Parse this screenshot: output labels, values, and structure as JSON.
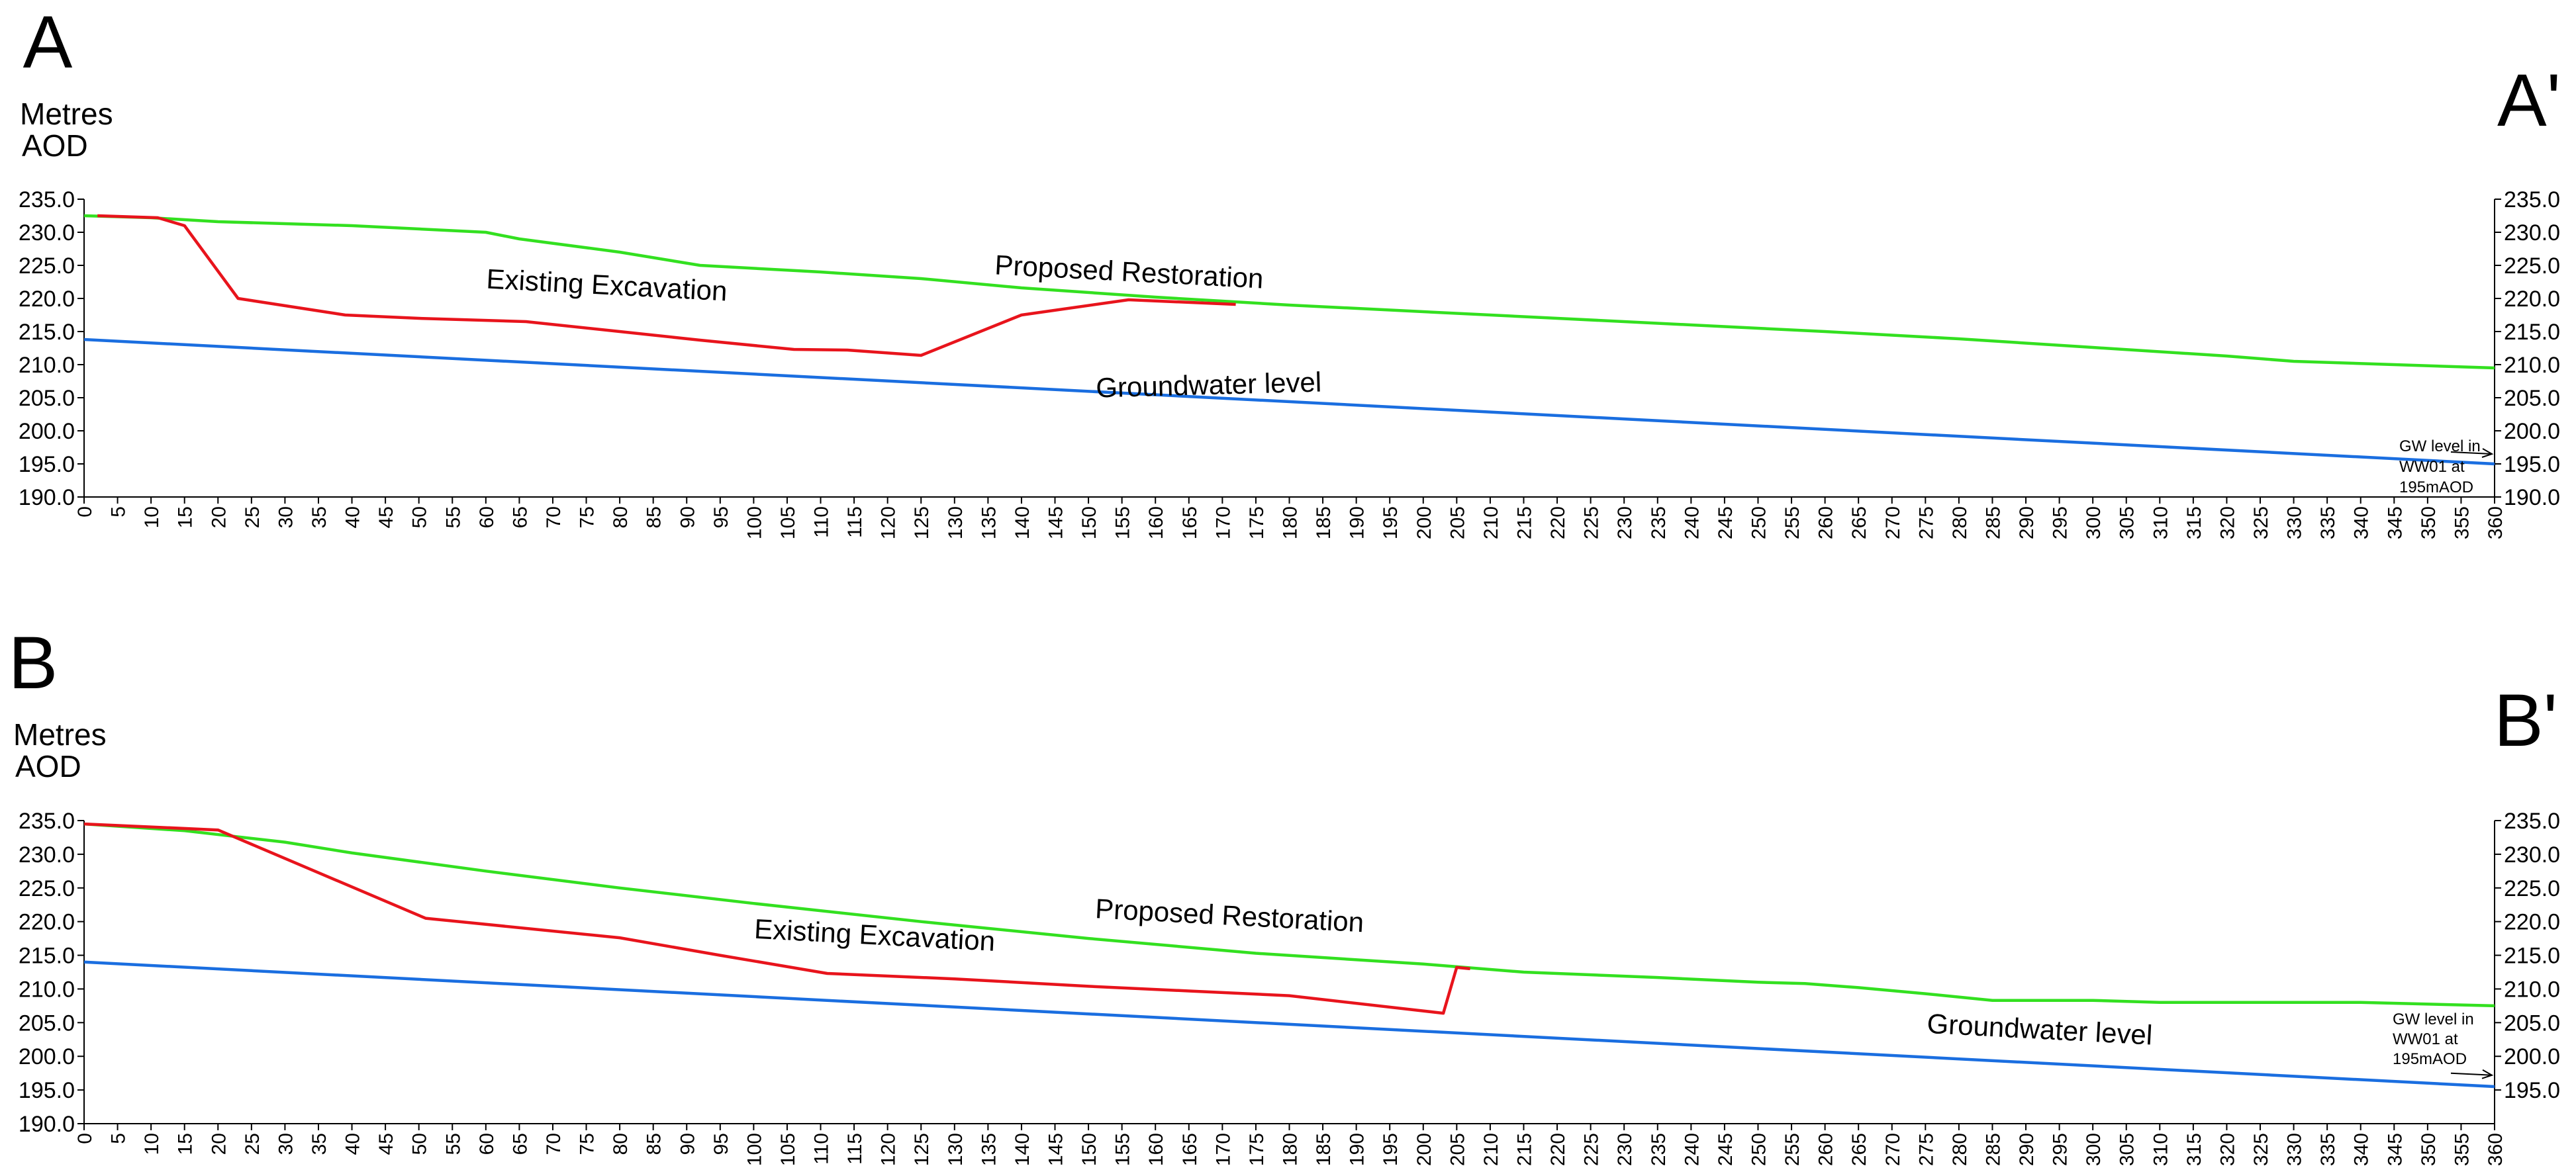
{
  "chart_data": [
    {
      "type": "line",
      "section_start": "A",
      "section_end": "A'",
      "ylabel": "Metres AOD",
      "ylabel_lines": [
        "Metres",
        "AOD"
      ],
      "xlim": [
        0,
        360
      ],
      "ylim": [
        190,
        235
      ],
      "x_tick_step": 5,
      "y_ticks": [
        "235.0",
        "230.0",
        "225.0",
        "220.0",
        "215.0",
        "210.0",
        "205.0",
        "200.0",
        "195.0",
        "190.0"
      ],
      "grid": false,
      "series": [
        {
          "name": "Proposed Restoration",
          "color": "#33e020",
          "points": [
            [
              0,
              232.5
            ],
            [
              10,
              232.2
            ],
            [
              20,
              231.6
            ],
            [
              40,
              231.0
            ],
            [
              60,
              230.0
            ],
            [
              65,
              229.0
            ],
            [
              80,
              227.0
            ],
            [
              92,
              225.0
            ],
            [
              110,
              224.0
            ],
            [
              125,
              223.0
            ],
            [
              140,
              221.6
            ],
            [
              160,
              220.2
            ],
            [
              180,
              219.0
            ],
            [
              200,
              218.0
            ],
            [
              220,
              217.0
            ],
            [
              240,
              216.0
            ],
            [
              260,
              215.0
            ],
            [
              280,
              213.9
            ],
            [
              300,
              212.6
            ],
            [
              320,
              211.3
            ],
            [
              330,
              210.5
            ],
            [
              345,
              210.0
            ],
            [
              360,
              209.5
            ]
          ]
        },
        {
          "name": "Existing Excavation",
          "color": "#e8141c",
          "points": [
            [
              2,
              232.5
            ],
            [
              11,
              232.2
            ],
            [
              15,
              231.0
            ],
            [
              23,
              220.0
            ],
            [
              39,
              217.5
            ],
            [
              50,
              217.0
            ],
            [
              66,
              216.5
            ],
            [
              80,
              215.0
            ],
            [
              92,
              213.7
            ],
            [
              106,
              212.3
            ],
            [
              114,
              212.2
            ],
            [
              125,
              211.4
            ],
            [
              140,
              217.5
            ],
            [
              156,
              219.8
            ],
            [
              172,
              219.1
            ]
          ]
        },
        {
          "name": "Groundwater level",
          "color": "#1a6ee0",
          "points": [
            [
              0,
              213.8
            ],
            [
              360,
              195.0
            ]
          ]
        }
      ],
      "annotations": {
        "line_labels": [
          {
            "text": "Existing Excavation",
            "x": 78,
            "y": 220.6,
            "rotate": 3
          },
          {
            "text": "Proposed Restoration",
            "x": 156,
            "y": 222.6,
            "rotate": 3
          },
          {
            "text": "Groundwater level",
            "x": 168,
            "y": 205.5,
            "rotate": -1.5
          }
        ],
        "note": [
          "GW level in",
          "WW01 at",
          "195mAOD"
        ],
        "note_arrow_to": [
          360,
          196.5
        ]
      }
    },
    {
      "type": "line",
      "section_start": "B",
      "section_end": "B'",
      "ylabel": "Metres AOD",
      "ylabel_lines": [
        "Metres",
        "AOD"
      ],
      "xlim": [
        0,
        360
      ],
      "ylim": [
        190,
        235
      ],
      "x_tick_step": 5,
      "y_ticks": [
        "235.0",
        "230.0",
        "225.0",
        "220.0",
        "215.0",
        "210.0",
        "205.0",
        "200.0",
        "195.0",
        "190.0"
      ],
      "right_y_ticks": [
        "235.0",
        "230.0",
        "225.0",
        "220.0",
        "215.0",
        "210.0",
        "205.0",
        "200.0",
        "195.0"
      ],
      "grid": false,
      "series": [
        {
          "name": "Proposed Restoration",
          "color": "#33e020",
          "points": [
            [
              0,
              234.5
            ],
            [
              15,
              233.5
            ],
            [
              30,
              231.8
            ],
            [
              40,
              230.2
            ],
            [
              60,
              227.5
            ],
            [
              80,
              225.0
            ],
            [
              100,
              222.7
            ],
            [
              125,
              220.0
            ],
            [
              150,
              217.5
            ],
            [
              175,
              215.3
            ],
            [
              200,
              213.7
            ],
            [
              215,
              212.5
            ],
            [
              235,
              211.7
            ],
            [
              250,
              211.0
            ],
            [
              257,
              210.8
            ],
            [
              265,
              210.2
            ],
            [
              275,
              209.3
            ],
            [
              285,
              208.3
            ],
            [
              300,
              208.3
            ],
            [
              310,
              208.0
            ],
            [
              340,
              208.0
            ],
            [
              360,
              207.5
            ]
          ]
        },
        {
          "name": "Existing Excavation",
          "color": "#e8141c",
          "points": [
            [
              0,
              234.5
            ],
            [
              20,
              233.6
            ],
            [
              51,
              220.5
            ],
            [
              80,
              217.6
            ],
            [
              95,
              215.0
            ],
            [
              111,
              212.3
            ],
            [
              130,
              211.5
            ],
            [
              150,
              210.4
            ],
            [
              165,
              209.7
            ],
            [
              180,
              209.0
            ],
            [
              203,
              206.4
            ],
            [
              205,
              213.2
            ],
            [
              207,
              213.0
            ]
          ]
        },
        {
          "name": "Groundwater level",
          "color": "#1a6ee0",
          "points": [
            [
              0,
              214.0
            ],
            [
              360,
              195.5
            ]
          ]
        }
      ],
      "annotations": {
        "line_labels": [
          {
            "text": "Existing Excavation",
            "x": 118,
            "y": 216.6,
            "rotate": 3
          },
          {
            "text": "Proposed Restoration",
            "x": 171,
            "y": 219.5,
            "rotate": 3
          },
          {
            "text": "Groundwater level",
            "x": 292,
            "y": 202.6,
            "rotate": 3
          }
        ],
        "note": [
          "GW level in",
          "WW01 at",
          "195mAOD"
        ],
        "note_arrow_to": [
          360,
          197.2
        ]
      }
    }
  ]
}
